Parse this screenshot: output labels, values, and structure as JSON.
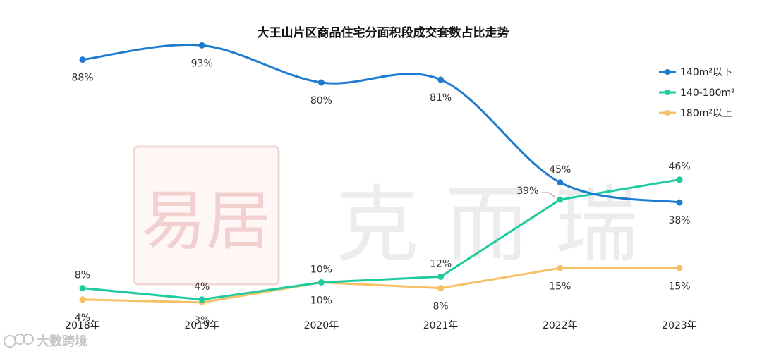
{
  "chart_data": {
    "type": "line",
    "title": "大王山片区商品住宅分面积段成交套数占比走势",
    "categories": [
      "2018年",
      "2019年",
      "2020年",
      "2021年",
      "2022年",
      "2023年"
    ],
    "ylim": [
      0,
      100
    ],
    "xlabel": "",
    "ylabel": "",
    "grid": false,
    "legend_position": "top-right",
    "series": [
      {
        "name": "140m²以下",
        "color": "#1f7bd0",
        "smooth": true,
        "values": [
          88,
          93,
          80,
          81,
          45,
          38
        ],
        "labels": [
          "88%",
          "93%",
          "80%",
          "81%",
          "45%",
          "38%"
        ]
      },
      {
        "name": "140-180m²",
        "color": "#1ecb9e",
        "smooth": false,
        "values": [
          8,
          4,
          10,
          12,
          39,
          46
        ],
        "labels": [
          "8%",
          "4%",
          "10%",
          "12%",
          "39%",
          "46%"
        ]
      },
      {
        "name": "180m²以上",
        "color": "#f5c164",
        "smooth": false,
        "values": [
          4,
          3,
          10,
          8,
          15,
          15
        ],
        "labels": [
          "4%",
          "3%",
          "10%",
          "8%",
          "15%",
          "15%"
        ]
      }
    ]
  },
  "watermark": {
    "text": "克 而 瑞",
    "seal": "易居"
  },
  "brand": {
    "text": "大数跨境",
    "icon": "brand-logo-icon"
  }
}
